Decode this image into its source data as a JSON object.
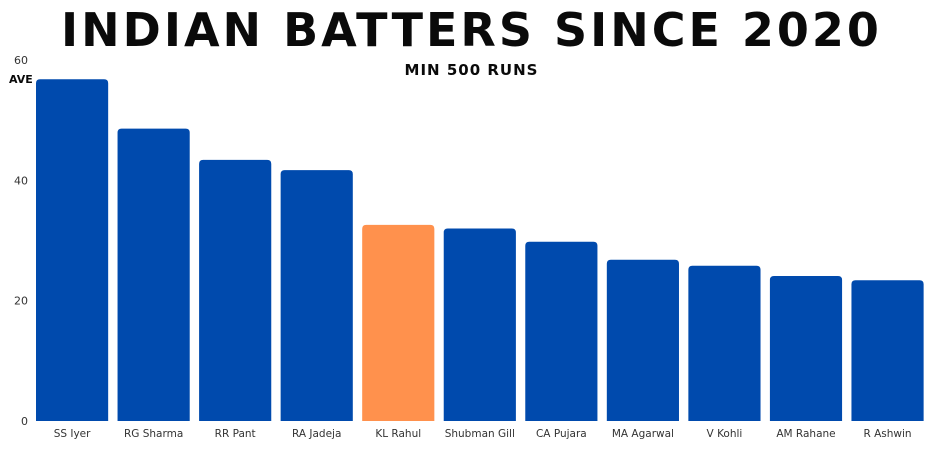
{
  "chart_data": {
    "type": "bar",
    "title": "INDIAN BATTERS SINCE 2020",
    "subtitle": "MIN 500 RUNS",
    "ylabel": "AVE",
    "xlabel": "",
    "ylim": [
      0,
      60
    ],
    "yticks": [
      0,
      20,
      40,
      60
    ],
    "grid": false,
    "legend": "none",
    "categories": [
      "SS Iyer",
      "RG Sharma",
      "RR Pant",
      "RA Jadeja",
      "KL Rahul",
      "Shubman Gill",
      "CA Pujara",
      "MA Agarwal",
      "V Kohli",
      "AM Rahane",
      "R Ashwin"
    ],
    "values": [
      56.8,
      48.6,
      43.4,
      41.7,
      32.6,
      32.0,
      29.8,
      26.8,
      25.8,
      24.1,
      23.4
    ],
    "highlight": "KL Rahul",
    "colors": {
      "bar": "#004aad",
      "highlight": "#ff914d"
    }
  }
}
